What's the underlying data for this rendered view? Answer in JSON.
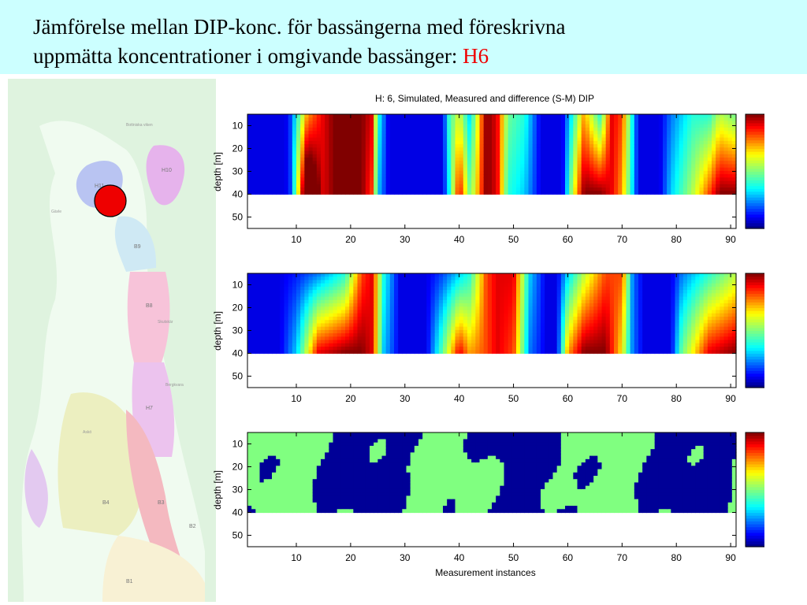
{
  "slide": {
    "title_line1": "Jämförelse mellan DIP-konc. för bassängerna med föreskrivna",
    "title_line2": "uppmätta koncentrationer i omgivande bassänger:",
    "title_highlight": "H6",
    "accent_color": "#ee0000",
    "header_bg": "#ccffff"
  },
  "map": {
    "marker_color": "#ee0000",
    "region_labels": [
      "H11",
      "H10",
      "B9",
      "B8",
      "H7",
      "B4",
      "B3",
      "B2",
      "B1"
    ],
    "place_labels": [
      "Bottniska viken",
      "Askö",
      "Bergkvara",
      "Skutskär",
      "Gävle"
    ]
  },
  "chart_data": {
    "type": "heatmap",
    "figure_title": "H: 6, Simulated, Measured and difference (S-M) DIP",
    "xlabel": "Measurement instances",
    "ylabel": "depth [m]",
    "xlim": [
      1,
      91
    ],
    "ylim": [
      5,
      55
    ],
    "x_ticks": [
      "10",
      "20",
      "30",
      "40",
      "50",
      "60",
      "70",
      "80",
      "90"
    ],
    "y_ticks": [
      "10",
      "20",
      "30",
      "40",
      "50"
    ],
    "data_depth_max": 40,
    "panels": [
      {
        "name": "Simulated",
        "clim": [
          1,
          24
        ],
        "colorbar_ticks": [
          "20",
          "15",
          "10",
          "5"
        ],
        "columns": [
          {
            "x": 1,
            "t": 3,
            "b": 3
          },
          {
            "x": 8,
            "t": 3,
            "b": 3
          },
          {
            "x": 9,
            "t": 5,
            "b": 5
          },
          {
            "x": 12,
            "t": 18,
            "b": 30
          },
          {
            "x": 15,
            "t": 22,
            "b": 22
          },
          {
            "x": 17,
            "t": 24,
            "b": 24
          },
          {
            "x": 22,
            "t": 24,
            "b": 24
          },
          {
            "x": 24,
            "t": 22,
            "b": 20
          },
          {
            "x": 25,
            "t": 10,
            "b": 8
          },
          {
            "x": 27,
            "t": 3,
            "b": 3
          },
          {
            "x": 37,
            "t": 3,
            "b": 3
          },
          {
            "x": 38,
            "t": 10,
            "b": 8
          },
          {
            "x": 40,
            "t": 15,
            "b": 22
          },
          {
            "x": 42,
            "t": 8,
            "b": 12
          },
          {
            "x": 45,
            "t": 24,
            "b": 24
          },
          {
            "x": 47,
            "t": 22,
            "b": 22
          },
          {
            "x": 49,
            "t": 12,
            "b": 10
          },
          {
            "x": 52,
            "t": 10,
            "b": 8
          },
          {
            "x": 55,
            "t": 3,
            "b": 3
          },
          {
            "x": 59,
            "t": 3,
            "b": 3
          },
          {
            "x": 61,
            "t": 10,
            "b": 15
          },
          {
            "x": 63,
            "t": 18,
            "b": 24
          },
          {
            "x": 66,
            "t": 10,
            "b": 24
          },
          {
            "x": 68,
            "t": 22,
            "b": 22
          },
          {
            "x": 70,
            "t": 20,
            "b": 18
          },
          {
            "x": 73,
            "t": 3,
            "b": 3
          },
          {
            "x": 77,
            "t": 3,
            "b": 3
          },
          {
            "x": 79,
            "t": 6,
            "b": 8
          },
          {
            "x": 83,
            "t": 10,
            "b": 14
          },
          {
            "x": 86,
            "t": 10,
            "b": 20
          },
          {
            "x": 88,
            "t": 14,
            "b": 24
          },
          {
            "x": 91,
            "t": 12,
            "b": 24
          }
        ]
      },
      {
        "name": "Measured",
        "clim": [
          1,
          24
        ],
        "colorbar_ticks": [
          "20",
          "15",
          "10",
          "5"
        ],
        "columns": [
          {
            "x": 1,
            "t": 3,
            "b": 3
          },
          {
            "x": 7,
            "t": 3,
            "b": 3
          },
          {
            "x": 10,
            "t": 4,
            "b": 8
          },
          {
            "x": 14,
            "t": 6,
            "b": 22
          },
          {
            "x": 19,
            "t": 10,
            "b": 24
          },
          {
            "x": 22,
            "t": 20,
            "b": 24
          },
          {
            "x": 24,
            "t": 22,
            "b": 22
          },
          {
            "x": 26,
            "t": 10,
            "b": 8
          },
          {
            "x": 29,
            "t": 3,
            "b": 3
          },
          {
            "x": 34,
            "t": 3,
            "b": 3
          },
          {
            "x": 37,
            "t": 5,
            "b": 12
          },
          {
            "x": 40,
            "t": 8,
            "b": 22
          },
          {
            "x": 42,
            "t": 10,
            "b": 18
          },
          {
            "x": 45,
            "t": 20,
            "b": 20
          },
          {
            "x": 47,
            "t": 22,
            "b": 22
          },
          {
            "x": 50,
            "t": 22,
            "b": 20
          },
          {
            "x": 53,
            "t": 8,
            "b": 6
          },
          {
            "x": 56,
            "t": 3,
            "b": 3
          },
          {
            "x": 58,
            "t": 3,
            "b": 3
          },
          {
            "x": 60,
            "t": 8,
            "b": 18
          },
          {
            "x": 63,
            "t": 14,
            "b": 24
          },
          {
            "x": 67,
            "t": 20,
            "b": 24
          },
          {
            "x": 70,
            "t": 20,
            "b": 16
          },
          {
            "x": 72,
            "t": 6,
            "b": 6
          },
          {
            "x": 74,
            "t": 3,
            "b": 3
          },
          {
            "x": 79,
            "t": 3,
            "b": 3
          },
          {
            "x": 81,
            "t": 6,
            "b": 12
          },
          {
            "x": 86,
            "t": 10,
            "b": 22
          },
          {
            "x": 91,
            "t": 14,
            "b": 24
          }
        ]
      },
      {
        "name": "Difference (S-M)",
        "clim": [
          -5,
          5
        ],
        "colorbar_ticks": [
          "4",
          "2",
          "0",
          "-2",
          "-4"
        ],
        "regions_note": "binary pattern: near 0 (light green) and strongly negative (dark blue)"
      }
    ]
  }
}
